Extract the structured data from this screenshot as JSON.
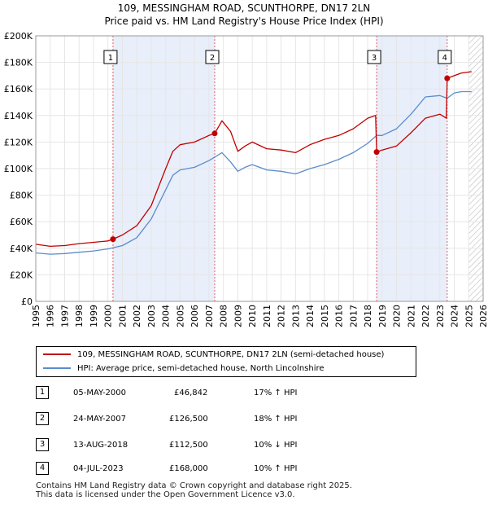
{
  "title_line1": "109, MESSINGHAM ROAD, SCUNTHORPE, DN17 2LN",
  "title_line2": "Price paid vs. HM Land Registry's House Price Index (HPI)",
  "colors": {
    "red": "#c00000",
    "blue": "#5b8ccc",
    "band": "#e8eefa",
    "vline": "#e06060"
  },
  "legend": [
    {
      "label": "109, MESSINGHAM ROAD, SCUNTHORPE, DN17 2LN (semi-detached house)",
      "color": "#c00000"
    },
    {
      "label": "HPI: Average price, semi-detached house, North Lincolnshire",
      "color": "#5b8ccc"
    }
  ],
  "transactions": [
    {
      "num": "1",
      "date": "05-MAY-2000",
      "price": "£46,842",
      "hpi": "17% ↑ HPI"
    },
    {
      "num": "2",
      "date": "24-MAY-2007",
      "price": "£126,500",
      "hpi": "18% ↑ HPI"
    },
    {
      "num": "3",
      "date": "13-AUG-2018",
      "price": "£112,500",
      "hpi": "10% ↓ HPI"
    },
    {
      "num": "4",
      "date": "04-JUL-2023",
      "price": "£168,000",
      "hpi": "10% ↑ HPI"
    }
  ],
  "footer_line1": "Contains HM Land Registry data © Crown copyright and database right 2025.",
  "footer_line2": "This data is licensed under the Open Government Licence v3.0.",
  "chart_data": {
    "type": "line",
    "title": "109, MESSINGHAM ROAD, SCUNTHORPE, DN17 2LN — Price paid vs. HM Land Registry's House Price Index (HPI)",
    "xlabel": "",
    "ylabel": "",
    "xlim": [
      1995,
      2026
    ],
    "ylim": [
      0,
      200000
    ],
    "x_ticks": [
      1995,
      1996,
      1997,
      1998,
      1999,
      2000,
      2001,
      2002,
      2003,
      2004,
      2005,
      2006,
      2007,
      2008,
      2009,
      2010,
      2011,
      2012,
      2013,
      2014,
      2015,
      2016,
      2017,
      2018,
      2019,
      2020,
      2021,
      2022,
      2023,
      2024,
      2025,
      2026
    ],
    "y_ticks": [
      0,
      20000,
      40000,
      60000,
      80000,
      100000,
      120000,
      140000,
      160000,
      180000,
      200000
    ],
    "y_tick_labels": [
      "£0",
      "£20K",
      "£40K",
      "£60K",
      "£80K",
      "£100K",
      "£120K",
      "£140K",
      "£160K",
      "£180K",
      "£200K"
    ],
    "shaded_ranges": [
      [
        2000.35,
        2007.4
      ],
      [
        2018.6,
        2023.5
      ]
    ],
    "hatched_after": 2025.0,
    "sales": [
      {
        "label": "1",
        "x": 2000.35,
        "y": 46842
      },
      {
        "label": "2",
        "x": 2007.4,
        "y": 126500
      },
      {
        "label": "3",
        "x": 2018.62,
        "y": 112500
      },
      {
        "label": "4",
        "x": 2023.51,
        "y": 168000
      }
    ],
    "series": [
      {
        "name": "109, MESSINGHAM ROAD, SCUNTHORPE, DN17 2LN (semi-detached house)",
        "color": "#c00000",
        "x": [
          1995,
          1996,
          1997,
          1998,
          1999,
          2000,
          2000.35,
          2001,
          2002,
          2003,
          2004,
          2004.5,
          2005,
          2006,
          2007,
          2007.4,
          2007.9,
          2008.5,
          2009,
          2009.5,
          2010,
          2011,
          2012,
          2013,
          2014,
          2015,
          2016,
          2017,
          2018,
          2018.55,
          2018.62,
          2019,
          2020,
          2021,
          2022,
          2023,
          2023.45,
          2023.51,
          2024,
          2024.5,
          2025.2
        ],
        "values": [
          43000,
          41500,
          42000,
          43500,
          44500,
          45500,
          46842,
          50000,
          57000,
          72000,
          100000,
          113000,
          118000,
          120000,
          125000,
          126500,
          136000,
          128000,
          113000,
          117000,
          120000,
          115000,
          114000,
          112000,
          118000,
          122000,
          125000,
          130000,
          138000,
          140000,
          112500,
          114000,
          117000,
          127000,
          138000,
          141000,
          138000,
          168000,
          170000,
          172000,
          173000
        ]
      },
      {
        "name": "HPI: Average price, semi-detached house, North Lincolnshire",
        "color": "#5b8ccc",
        "x": [
          1995,
          1996,
          1997,
          1998,
          1999,
          2000,
          2001,
          2002,
          2003,
          2004,
          2004.5,
          2005,
          2006,
          2007,
          2007.9,
          2008.5,
          2009,
          2009.5,
          2010,
          2011,
          2012,
          2013,
          2014,
          2015,
          2016,
          2017,
          2018,
          2018.62,
          2019,
          2020,
          2021,
          2022,
          2023,
          2023.51,
          2024,
          2024.5,
          2025.2
        ],
        "values": [
          36500,
          35500,
          36000,
          37000,
          38000,
          39500,
          42000,
          48000,
          62000,
          84000,
          95000,
          99000,
          101000,
          106000,
          112000,
          105000,
          98000,
          101000,
          103000,
          99000,
          98000,
          96000,
          100000,
          103000,
          107000,
          112000,
          119000,
          125000,
          125000,
          130000,
          141000,
          154000,
          155000,
          153000,
          157000,
          158000,
          158000
        ]
      }
    ]
  }
}
